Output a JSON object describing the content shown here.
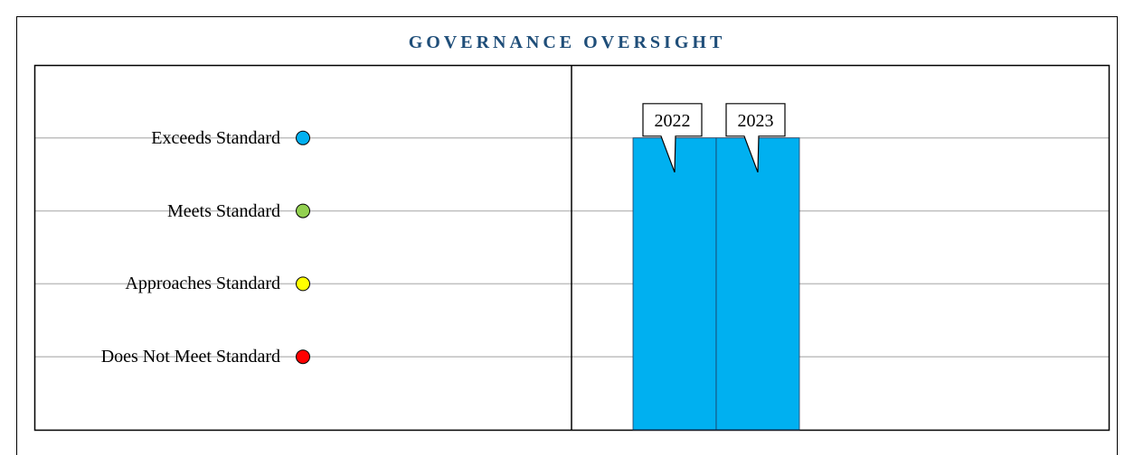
{
  "chart_data": {
    "type": "bar",
    "title": "GOVERNANCE OVERSIGHT",
    "categories": [
      "2022",
      "2023"
    ],
    "values": [
      4,
      4
    ],
    "color": "#00b0f0",
    "ylim": [
      0,
      5
    ],
    "yticks": [
      {
        "value": 1,
        "label": "Does Not Meet Standard"
      },
      {
        "value": 2,
        "label": "Approaches Standard"
      },
      {
        "value": 3,
        "label": "Meets Standard"
      },
      {
        "value": 4,
        "label": "Exceeds Standard"
      }
    ],
    "ytick_colors": [
      "#ff0000",
      "#ffff00",
      "#92d050",
      "#00b0f0"
    ],
    "grid": true
  }
}
